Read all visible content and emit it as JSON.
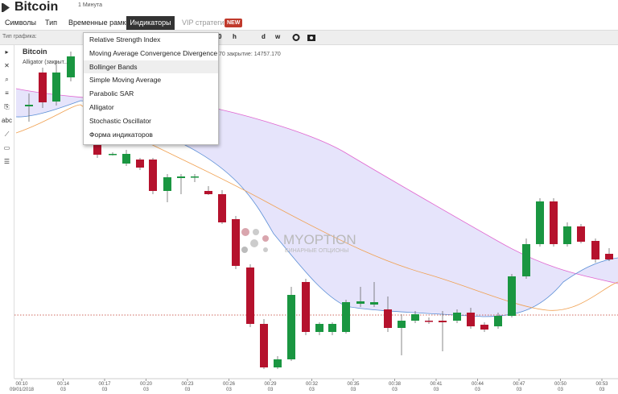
{
  "header": {
    "title": "Bitcoin",
    "timeframe": "1 Минута"
  },
  "menu": {
    "items": [
      "Символы",
      "Тип",
      "Временные рамки",
      "Индикаторы",
      "VIP стратегии"
    ],
    "badge": "NEW"
  },
  "toolbar": {
    "label": "Тип графика:",
    "buttons": [
      "0",
      "h",
      "d",
      "w"
    ]
  },
  "dropdown": {
    "items": [
      "Relative Strength Index",
      "Moving Average Convergence Divergence",
      "Bollinger Bands",
      "Simple Moving Average",
      "Parabolic SAR",
      "Alligator",
      "Stochastic Oscillator",
      "Форма индикаторов"
    ]
  },
  "chart": {
    "symbol": "Bitcoin",
    "indicator": "Alligator (закрыт...",
    "close_info": "70 закрытие: 14757.170",
    "watermark": {
      "brand": "MYOPTION",
      "tagline": "БИНАРНЫЕ ОПЦИОНЫ"
    },
    "x_axis": [
      {
        "time": "00:10",
        "date": "09/01/2018"
      },
      {
        "time": "00:14",
        "date": "03"
      },
      {
        "time": "00:17",
        "date": "03"
      },
      {
        "time": "00:20",
        "date": "03"
      },
      {
        "time": "00:23",
        "date": "03"
      },
      {
        "time": "00:26",
        "date": "03"
      },
      {
        "time": "00:29",
        "date": "03"
      },
      {
        "time": "00:32",
        "date": "03"
      },
      {
        "time": "00:35",
        "date": "03"
      },
      {
        "time": "00:38",
        "date": "03"
      },
      {
        "time": "00:41",
        "date": "03"
      },
      {
        "time": "00:44",
        "date": "03"
      },
      {
        "time": "00:47",
        "date": "03"
      },
      {
        "time": "00:50",
        "date": "03"
      },
      {
        "time": "00:53",
        "date": "03"
      }
    ]
  }
}
